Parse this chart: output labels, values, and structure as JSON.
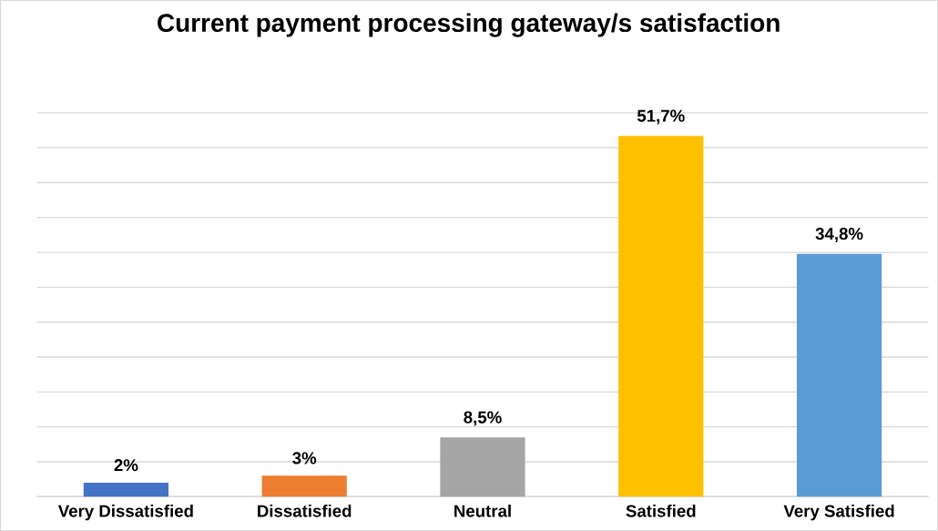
{
  "chart_data": {
    "type": "bar",
    "title": "Current payment processing gateway/s satisfaction",
    "categories": [
      "Very Dissatisfied",
      "Dissatisfied",
      "Neutral",
      "Satisfied",
      "Very Satisfied"
    ],
    "values": [
      2,
      3,
      8.5,
      51.7,
      34.8
    ],
    "colors": [
      "#4472c4",
      "#ed7d31",
      "#a5a5a5",
      "#ffc000",
      "#5b9bd5"
    ],
    "value_labels": [
      "2%",
      "3%",
      "8,5%",
      "51,7%",
      "34,8%"
    ],
    "grid": "y"
  }
}
